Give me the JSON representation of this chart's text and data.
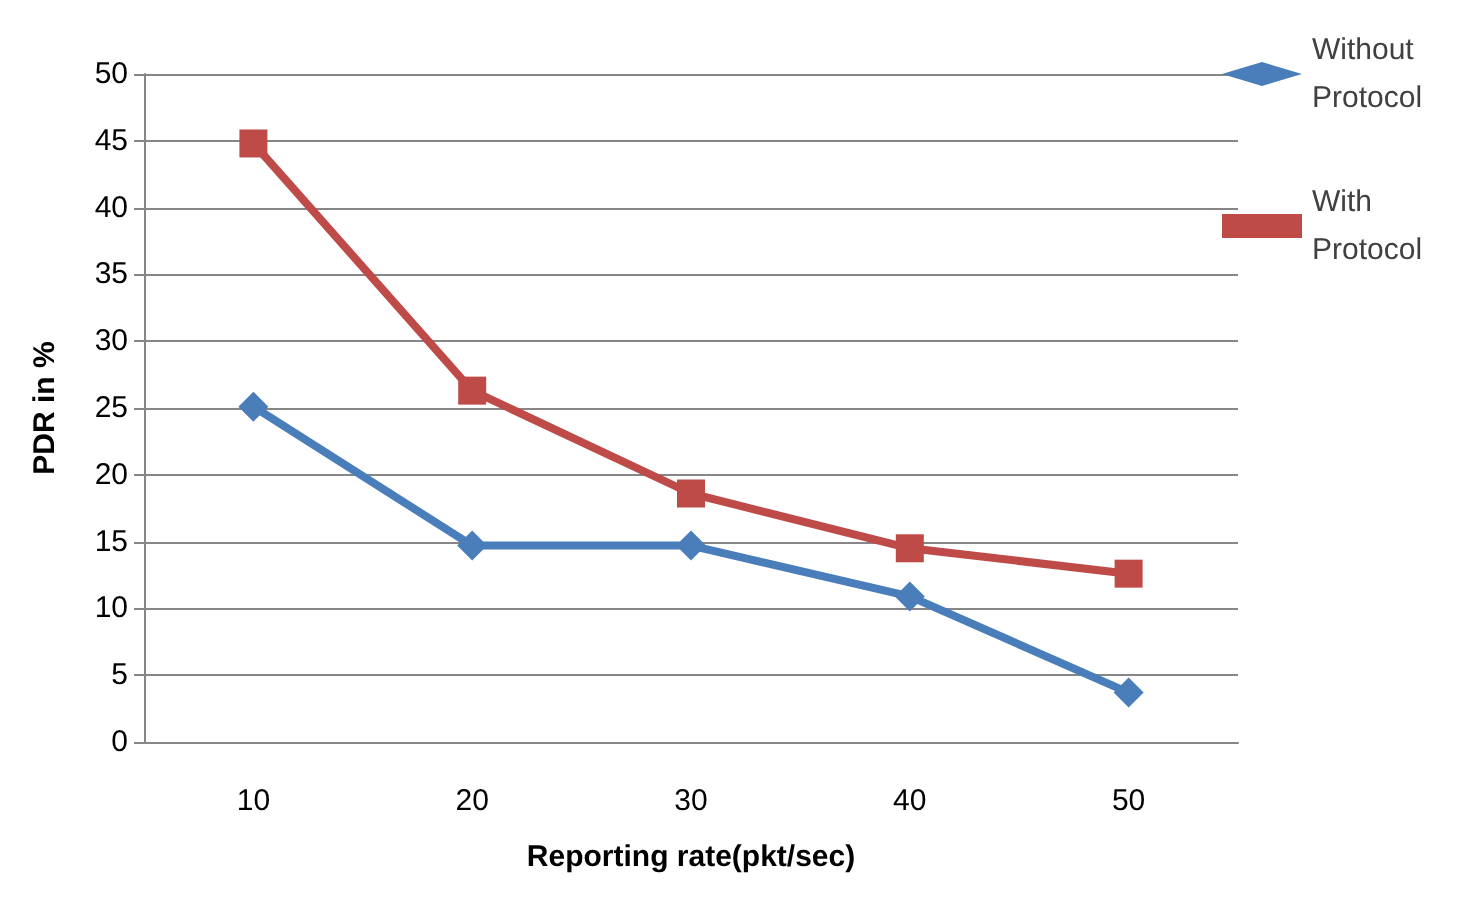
{
  "chart_data": {
    "type": "line",
    "xlabel": "Reporting rate(pkt/sec)",
    "ylabel": "PDR in %",
    "categories": [
      "10",
      "20",
      "30",
      "40",
      "50"
    ],
    "series": [
      {
        "name": "Without Protocol",
        "color": "#4a7ebb",
        "marker": "diamond",
        "values": [
          25.1,
          14.7,
          14.7,
          10.9,
          3.7
        ]
      },
      {
        "name": "With Protocol",
        "color": "#be4b48",
        "marker": "square",
        "values": [
          44.8,
          26.3,
          18.6,
          14.5,
          12.6
        ]
      }
    ],
    "ylim": [
      0,
      50
    ],
    "yticks": [
      0,
      5,
      10,
      15,
      20,
      25,
      30,
      35,
      40,
      45,
      50
    ],
    "grid": "y",
    "legend": "top right"
  }
}
